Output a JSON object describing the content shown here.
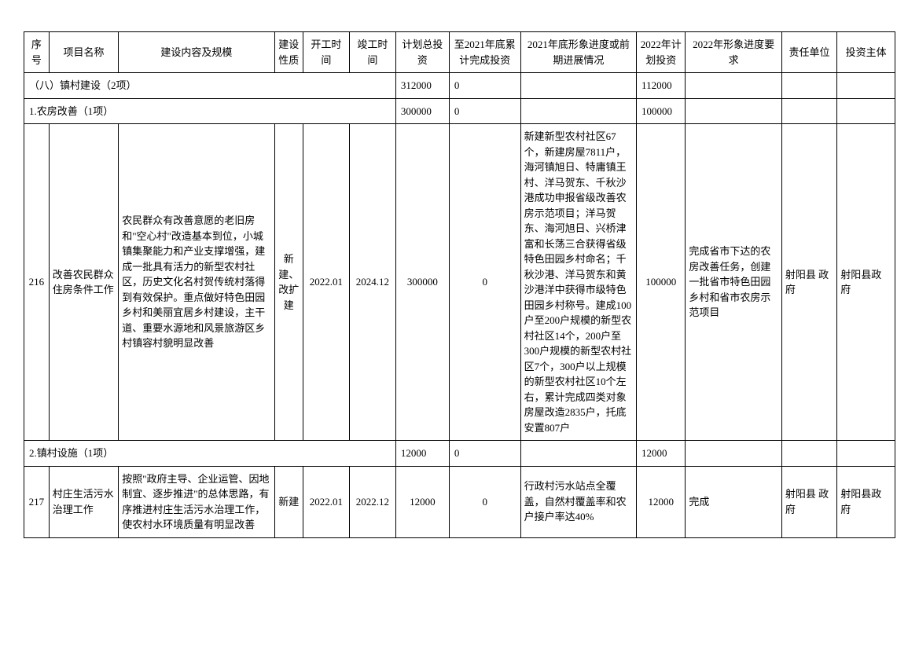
{
  "headers": {
    "seq": "序号",
    "name": "项目名称",
    "content": "建设内容及规模",
    "nature": "建设性质",
    "start": "开工时间",
    "end": "竣工时间",
    "total": "计划总投资",
    "cumulative": "至2021年底累计完成投资",
    "progress": "2021年底形象进度或前期进展情况",
    "plan2022": "2022年计划投资",
    "req2022": "2022年形象进度要求",
    "unit": "责任单位",
    "investor": "投资主体"
  },
  "sections": {
    "s8": {
      "title": "（八）镇村建设（2项）",
      "total": "312000",
      "cumulative": "0",
      "plan2022": "112000"
    },
    "s8_1": {
      "title": "1.农房改善（1项）",
      "total": "300000",
      "cumulative": "0",
      "plan2022": "100000"
    },
    "s8_2": {
      "title": "2.镇村设施（1项）",
      "total": "12000",
      "cumulative": "0",
      "plan2022": "12000"
    }
  },
  "rows": {
    "r216": {
      "seq": "216",
      "name": "改善农民群众住房条件工作",
      "content": "农民群众有改善意愿的老旧房和\"空心村\"改造基本到位，小城镇集聚能力和产业支撑增强，建成一批具有活力的新型农村社区，历史文化名村贺传统村落得到有效保护。重点做好特色田园乡村和美丽宜居乡村建设，主干道、重要水源地和风景旅游区乡村镇容村貌明显改善",
      "nature": "新建、改扩建",
      "start": "2022.01",
      "end": "2024.12",
      "total": "300000",
      "cumulative": "0",
      "progress": "新建新型农村社区67个，新建房屋7811户，海河镇旭日、特庸镇王村、洋马贺东、千秋沙港成功申报省级改善农房示范项目；洋马贺东、海河旭日、兴桥津富和长荡三合获得省级特色田园乡村命名；千秋沙港、洋马贺东和黄沙港洋中获得市级特色田园乡村称号。建成100户至200户规模的新型农村社区14个，200户至300户规模的新型农村社区7个，300户以上规模的新型农村社区10个左右，累计完成四类对象房屋改造2835户，托底安置807户",
      "plan2022": "100000",
      "req2022": "完成省市下达的农房改善任务，创建一批省市特色田园乡村和省市农房示范项目",
      "unit": "射阳县 政府",
      "investor": "射阳县政府"
    },
    "r217": {
      "seq": "217",
      "name": "村庄生活污水治理工作",
      "content": "按照\"政府主导、企业运管、因地制宜、逐步推进\"的总体思路，有序推进村庄生活污水治理工作，使农村水环境质量有明显改善",
      "nature": "新建",
      "start": "2022.01",
      "end": "2022.12",
      "total": "12000",
      "cumulative": "0",
      "progress": "行政村污水站点全覆盖，自然村覆盖率和农户接户率达40%",
      "plan2022": "12000",
      "req2022": "完成",
      "unit": "射阳县 政府",
      "investor": "射阳县政府"
    }
  }
}
